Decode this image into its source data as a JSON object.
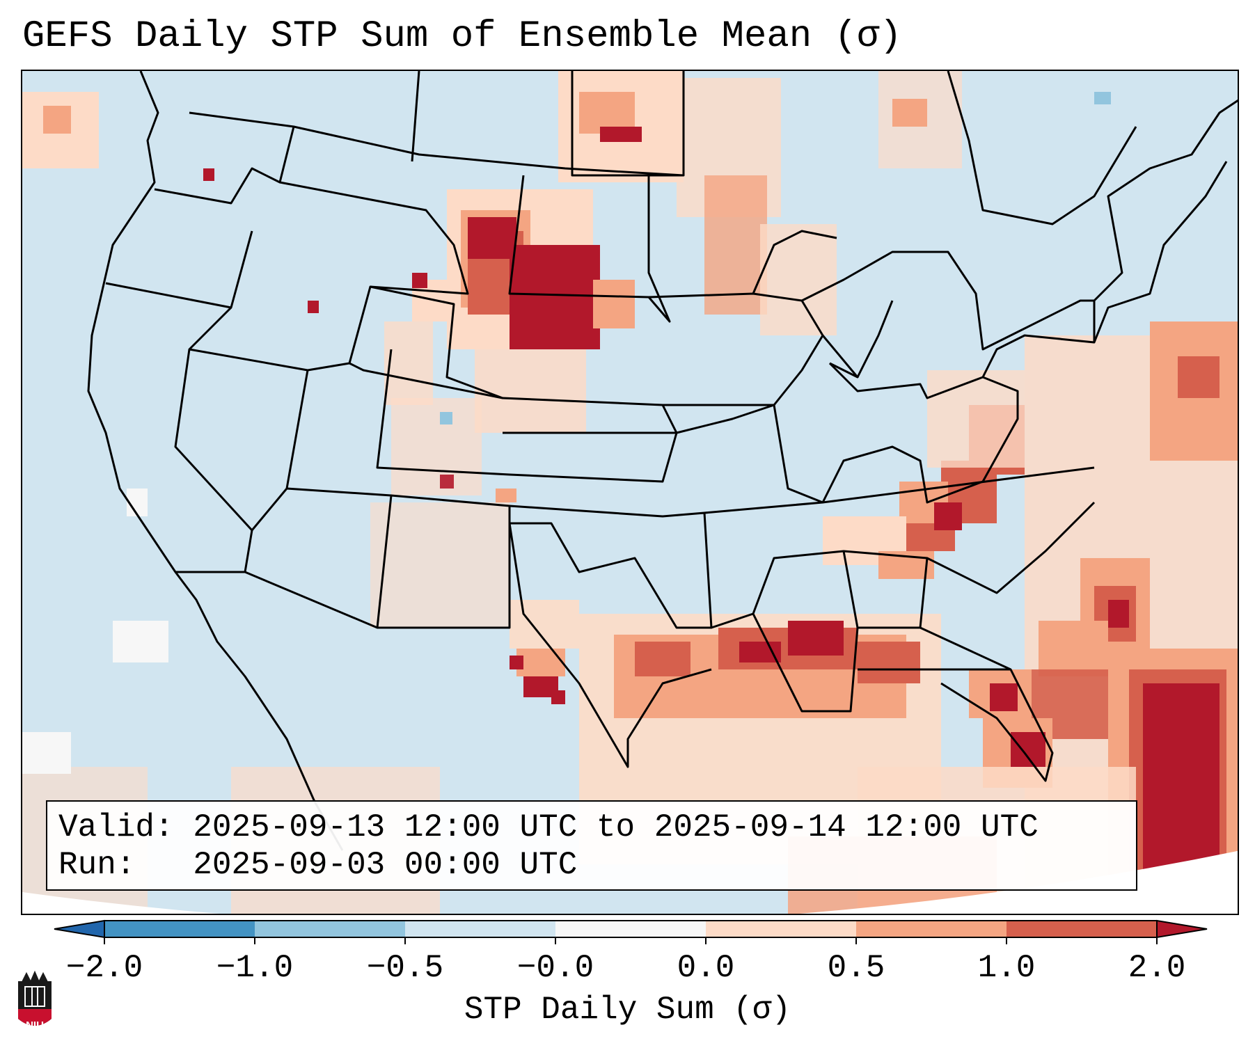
{
  "title": "GEFS Daily STP Sum of Ensemble Mean (σ)",
  "info": {
    "valid": "Valid: 2025-09-13 12:00 UTC to 2025-09-14 12:00 UTC",
    "run": "Run:   2025-09-03 00:00 UTC"
  },
  "colorbar": {
    "label": "STP Daily Sum (σ)",
    "ticks": [
      "−2.0",
      "−1.0",
      "−0.5",
      "−0.0",
      "0.0",
      "0.5",
      "1.0",
      "2.0"
    ],
    "colors": [
      "#2166ac",
      "#4393c3",
      "#92c5de",
      "#d1e5f0",
      "#f7f7f7",
      "#fddbc7",
      "#f4a582",
      "#d6604d",
      "#b2182b"
    ]
  },
  "map_colors": {
    "ocean": "#d1e5f0",
    "light": "#fddbc7",
    "medium": "#f4a582",
    "strong": "#d6604d",
    "extreme": "#b2182b",
    "negative": "#92c5de",
    "white": "#f7f7f7"
  },
  "logo": {
    "text": "NIU"
  }
}
